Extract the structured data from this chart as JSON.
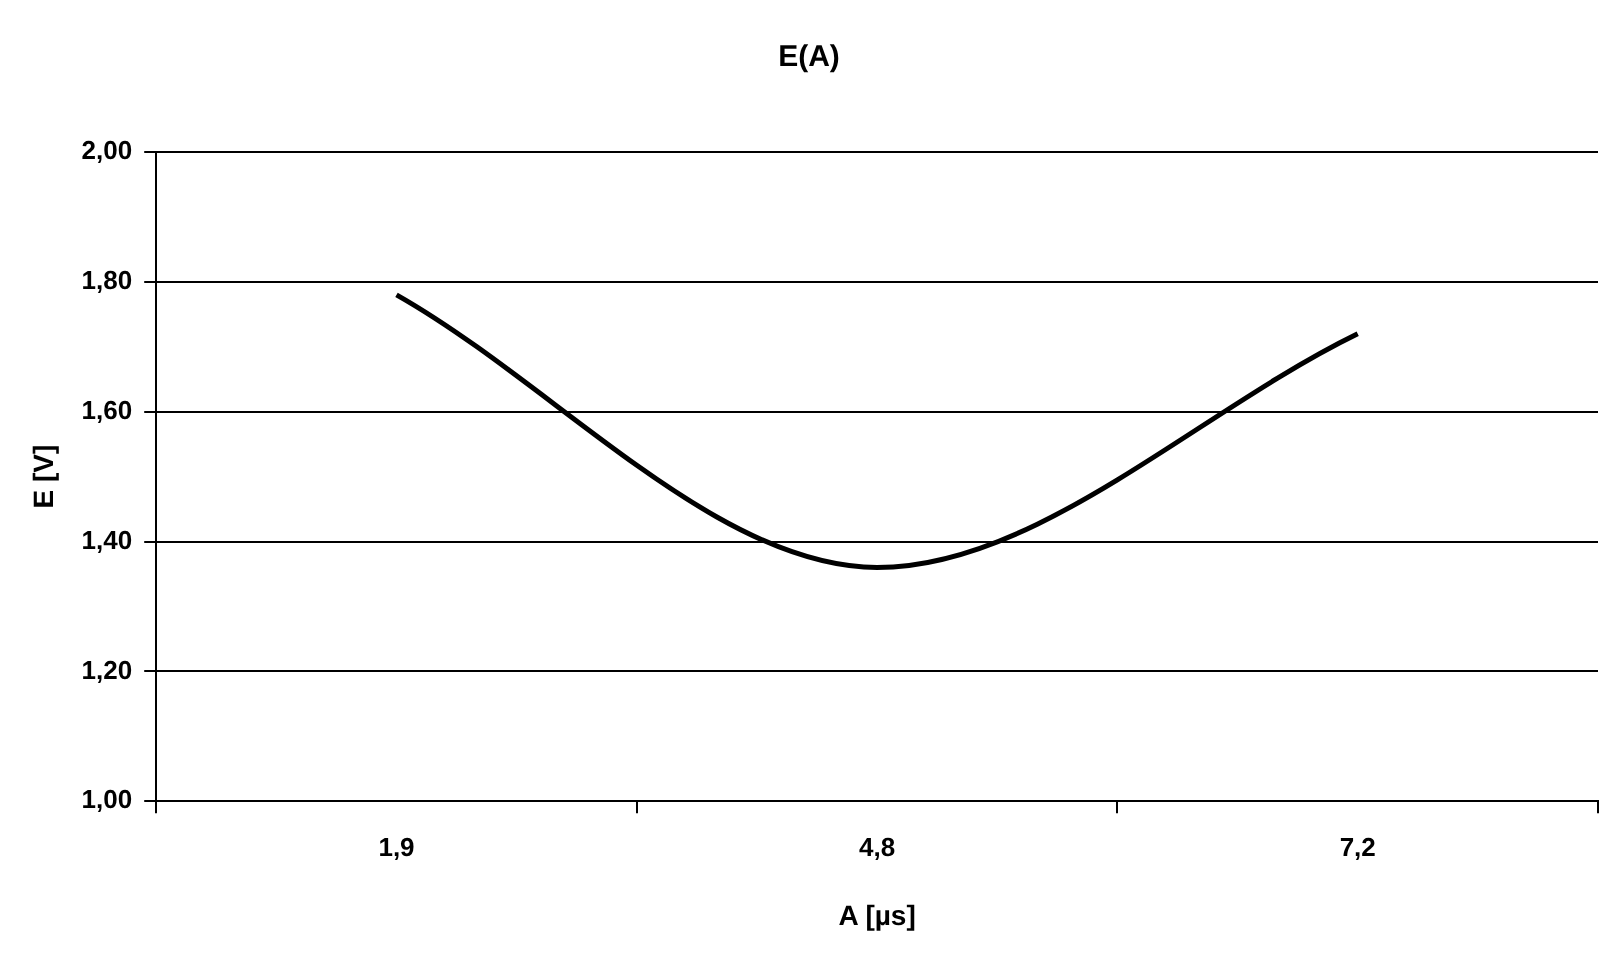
{
  "chart_data": {
    "type": "line",
    "title": "E(A)",
    "xlabel": "A [µs]",
    "ylabel": "E [V]",
    "categories": [
      "1,9",
      "4,8",
      "7,2"
    ],
    "series": [
      {
        "color": "#000000",
        "values": [
          1.78,
          1.36,
          1.72
        ]
      }
    ],
    "ylim": [
      1,
      2
    ],
    "yticks": [
      {
        "value": 1,
        "label": "1,00"
      },
      {
        "value": 1.2,
        "label": "1,20"
      },
      {
        "value": 1.4,
        "label": "1,40"
      },
      {
        "value": 1.6,
        "label": "1,60"
      },
      {
        "value": 1.8,
        "label": "1,80"
      },
      {
        "value": 2,
        "label": "2,00"
      }
    ],
    "grid": "y",
    "legend": false,
    "marker": "none",
    "line_style": "solid"
  }
}
